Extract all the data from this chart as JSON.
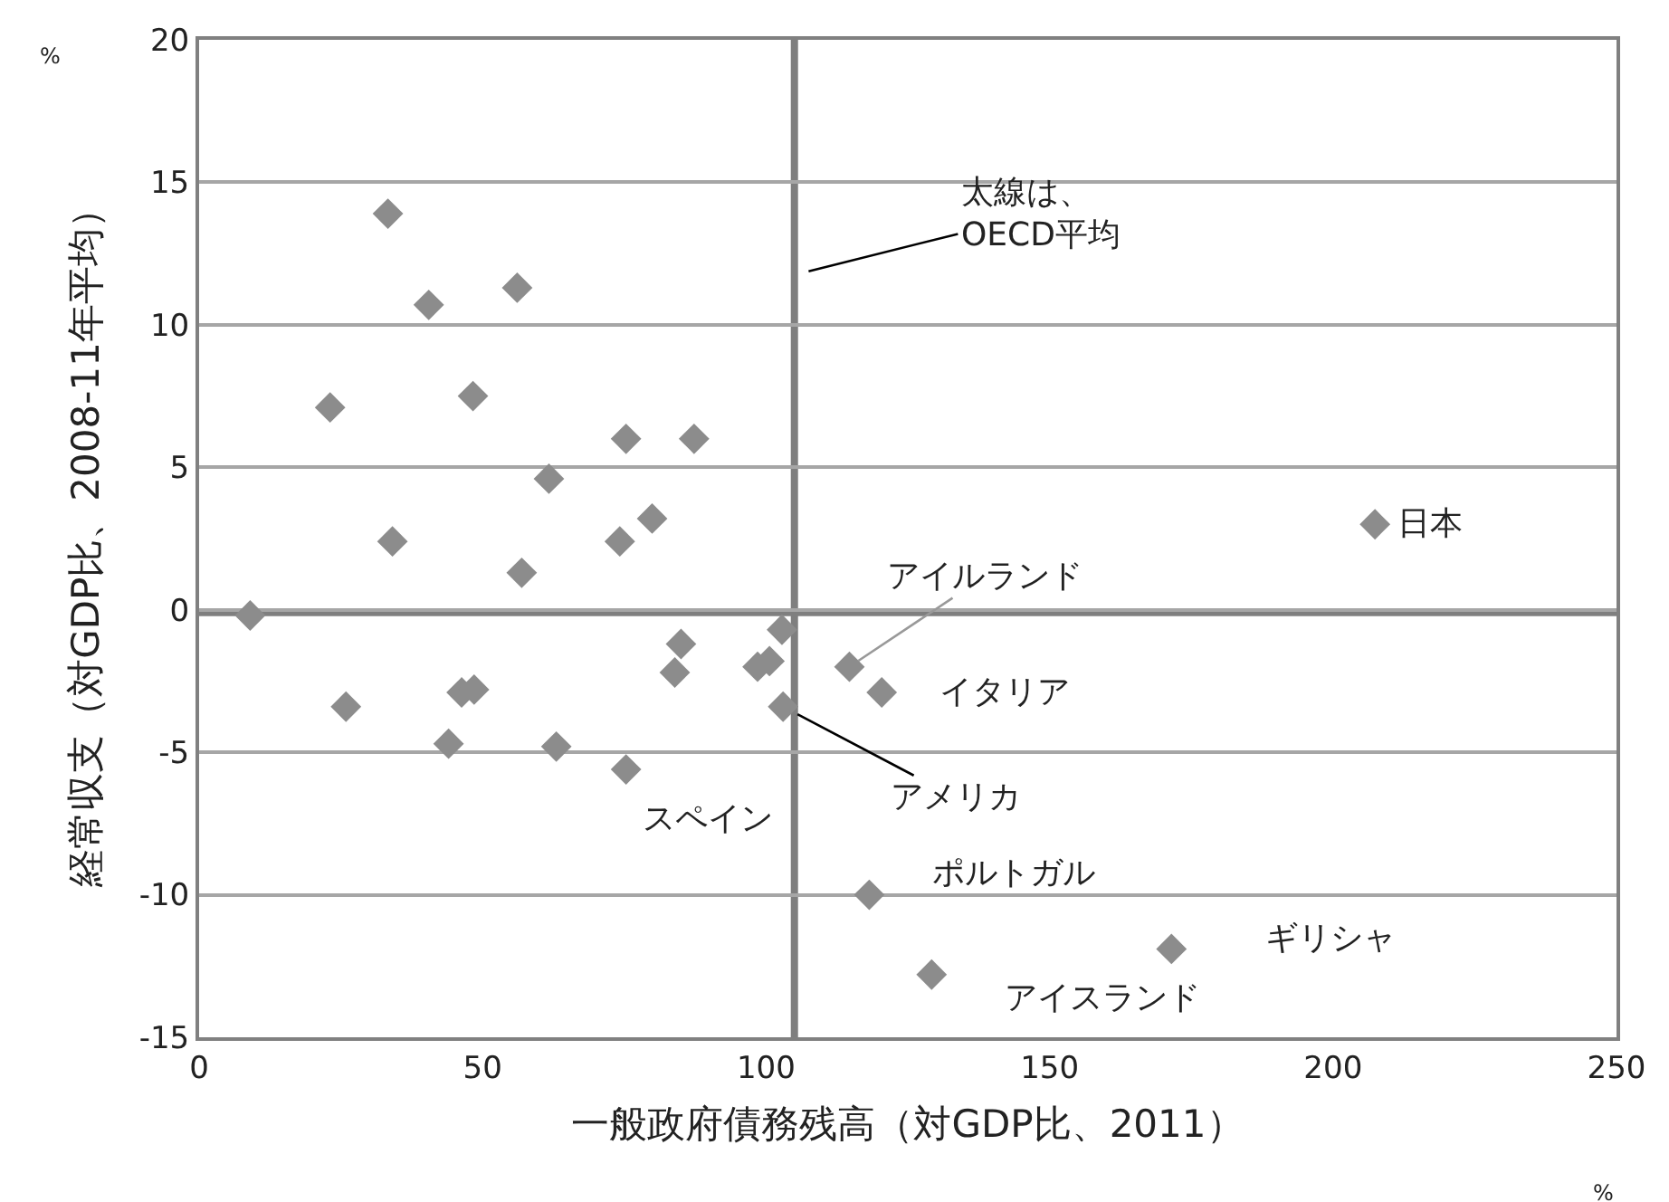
{
  "chart_data": {
    "type": "scatter",
    "xlabel": "一般政府債務残高（対GDP比、2011）",
    "ylabel": "経常収支（対GDP比、2008-11年平均）",
    "xlim": [
      0,
      250
    ],
    "xticks": [
      0,
      50,
      100,
      150,
      200,
      250
    ],
    "ylim": [
      -15,
      20
    ],
    "yticks": [
      -15,
      -10,
      -5,
      0,
      5,
      10,
      15,
      20
    ],
    "grid": "y",
    "marker": "diamond",
    "series": [
      {
        "color": "#8c8c8c",
        "x": [
          33.3,
          40.5,
          56.1,
          23.1,
          48.3,
          75.3,
          87.3,
          61.7,
          34.1,
          74.2,
          79.9,
          56.9,
          9.0,
          85.0,
          83.9,
          102.8,
          98.5,
          100.6,
          103.0,
          25.9,
          46.3,
          48.5,
          44.0,
          63.0,
          75.3,
          118.2,
          207.4,
          114.7,
          120.4,
          171.5,
          129.2
        ],
        "values": [
          13.9,
          10.7,
          11.3,
          7.1,
          7.5,
          6.0,
          6.0,
          4.6,
          2.4,
          2.4,
          3.2,
          1.3,
          -0.2,
          -1.2,
          -2.2,
          -0.7,
          -2.0,
          -1.8,
          -3.4,
          -3.4,
          -2.9,
          -2.8,
          -4.7,
          -4.8,
          -5.6,
          -10.0,
          3.0,
          -2.0,
          -2.9,
          -11.9,
          -12.8
        ]
      }
    ],
    "ref_lines": [
      {
        "axis": "x",
        "value": 105,
        "color": "#7f7f7f"
      },
      {
        "axis": "y",
        "value": -0.1,
        "color": "#7f7f7f"
      }
    ],
    "annotations": [
      {
        "text": "日本",
        "x": 207.4,
        "y": 3.0
      },
      {
        "text": "アイルランド",
        "x": 114.7,
        "y": -2.0
      },
      {
        "text": "イタリア",
        "x": 120.4,
        "y": -2.9
      },
      {
        "text": "アメリカ",
        "x": 103.0,
        "y": -3.4
      },
      {
        "text": "スペイン",
        "x": 75.3,
        "y": -5.6
      },
      {
        "text": "ポルトガル",
        "x": 118.2,
        "y": -10.0
      },
      {
        "text": "ギリシャ",
        "x": 171.5,
        "y": -11.9
      },
      {
        "text": "アイスランド",
        "x": 129.2,
        "y": -12.8
      },
      "太線は、\nOECD平均",
      "%",
      "%"
    ]
  }
}
